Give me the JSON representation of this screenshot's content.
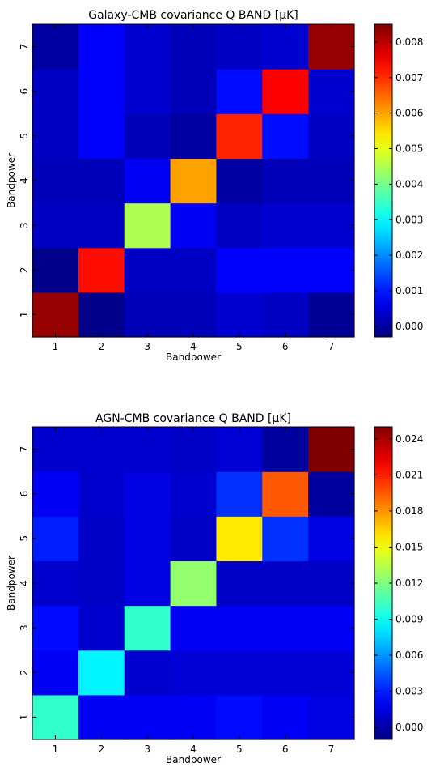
{
  "chart_data": [
    {
      "type": "heatmap",
      "title": "Galaxy-CMB covariance   Q BAND  [μK]",
      "xlabel": "Bandpower",
      "ylabel": "Bandpower",
      "x_ticks": [
        "1",
        "2",
        "3",
        "4",
        "5",
        "6",
        "7"
      ],
      "y_ticks": [
        "1",
        "2",
        "3",
        "4",
        "5",
        "6",
        "7"
      ],
      "zlim": [
        -0.0003,
        0.0085
      ],
      "colorbar_ticks": [
        "0.000",
        "0.001",
        "0.002",
        "0.003",
        "0.004",
        "0.005",
        "0.006",
        "0.007",
        "0.008"
      ],
      "colormap": "jet",
      "matrix": [
        [
          0.0083,
          -0.0002,
          0.0002,
          0.0002,
          0.0004,
          0.0003,
          -0.0001
        ],
        [
          -0.0002,
          0.0073,
          0.0003,
          0.0003,
          0.0008,
          0.0008,
          0.0008
        ],
        [
          0.0003,
          0.0003,
          0.0045,
          0.0007,
          0.0003,
          0.0004,
          0.0004
        ],
        [
          0.0002,
          0.0002,
          0.0007,
          0.006,
          0.0,
          0.0002,
          0.0002
        ],
        [
          0.0003,
          0.0008,
          0.0002,
          0.0,
          0.0071,
          0.0009,
          0.0003
        ],
        [
          0.0003,
          0.0008,
          0.0004,
          0.0002,
          0.0009,
          0.0074,
          0.0004
        ],
        [
          0.0,
          0.0008,
          0.0004,
          0.0002,
          0.0003,
          0.0004,
          0.0083
        ]
      ]
    },
    {
      "type": "heatmap",
      "title": "AGN-CMB covariance   Q BAND  [μK]",
      "xlabel": "Bandpower",
      "ylabel": "Bandpower",
      "x_ticks": [
        "1",
        "2",
        "3",
        "4",
        "5",
        "6",
        "7"
      ],
      "y_ticks": [
        "1",
        "2",
        "3",
        "4",
        "5",
        "6",
        "7"
      ],
      "zlim": [
        -0.001,
        0.025
      ],
      "colorbar_ticks": [
        "0.000",
        "0.003",
        "0.006",
        "0.009",
        "0.012",
        "0.015",
        "0.018",
        "0.021",
        "0.024"
      ],
      "colormap": "jet",
      "matrix": [
        [
          0.01,
          0.002,
          0.002,
          0.002,
          0.0025,
          0.002,
          0.0015
        ],
        [
          0.002,
          0.0085,
          0.001,
          0.0012,
          0.0012,
          0.0012,
          0.0012
        ],
        [
          0.0025,
          0.001,
          0.01,
          0.002,
          0.002,
          0.002,
          0.002
        ],
        [
          0.001,
          0.0008,
          0.0015,
          0.0125,
          0.0008,
          0.0008,
          0.0008
        ],
        [
          0.003,
          0.0008,
          0.0015,
          0.0008,
          0.0158,
          0.0035,
          0.0015
        ],
        [
          0.002,
          0.001,
          0.0015,
          0.001,
          0.0035,
          0.0195,
          -0.0002
        ],
        [
          0.001,
          0.001,
          0.001,
          0.0008,
          0.0012,
          -0.0002,
          0.025
        ]
      ]
    }
  ]
}
